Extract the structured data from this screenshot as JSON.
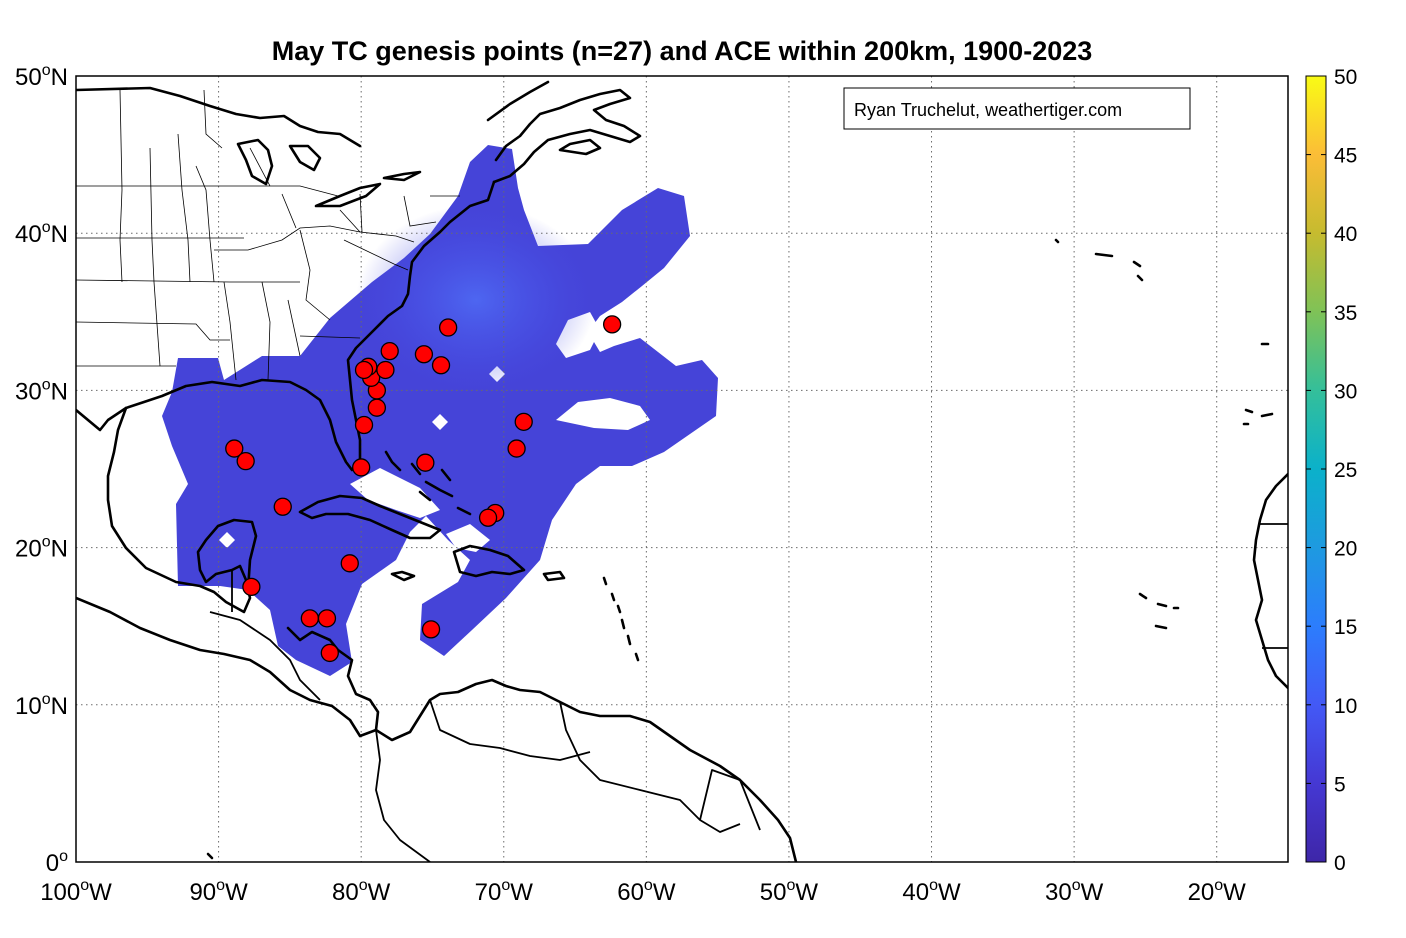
{
  "title": "May TC genesis points (n=27) and ACE within 200km, 1900-2023",
  "credit": "Ryan Truchelut, weathertiger.com",
  "map": {
    "lon_range": [
      -100,
      -15
    ],
    "lat_range": [
      0,
      50
    ],
    "x_ticks": [
      {
        "value": -100,
        "num": "100",
        "hem": "W"
      },
      {
        "value": -90,
        "num": "90",
        "hem": "W"
      },
      {
        "value": -80,
        "num": "80",
        "hem": "W"
      },
      {
        "value": -70,
        "num": "70",
        "hem": "W"
      },
      {
        "value": -60,
        "num": "60",
        "hem": "W"
      },
      {
        "value": -50,
        "num": "50",
        "hem": "W"
      },
      {
        "value": -40,
        "num": "40",
        "hem": "W"
      },
      {
        "value": -30,
        "num": "30",
        "hem": "W"
      },
      {
        "value": -20,
        "num": "20",
        "hem": "W"
      }
    ],
    "y_ticks": [
      {
        "value": 0,
        "num": "0",
        "hem": ""
      },
      {
        "value": 10,
        "num": "10",
        "hem": "N"
      },
      {
        "value": 20,
        "num": "20",
        "hem": "N"
      },
      {
        "value": 30,
        "num": "30",
        "hem": "N"
      },
      {
        "value": 40,
        "num": "40",
        "hem": "N"
      },
      {
        "value": 50,
        "num": "50",
        "hem": "N"
      }
    ],
    "degree_symbol": "o",
    "land_outline_color": "#000000",
    "grid": true
  },
  "colorbar": {
    "range": [
      0,
      50
    ],
    "ticks": [
      "0",
      "5",
      "10",
      "15",
      "20",
      "25",
      "30",
      "35",
      "40",
      "45",
      "50"
    ],
    "colormap": "parula",
    "colors": [
      "#3e26a8",
      "#4743e0",
      "#2f73fb",
      "#1e98e0",
      "#03b2c7",
      "#3bc08f",
      "#99c03a",
      "#dfb928",
      "#fdc831",
      "#f9fb15"
    ]
  },
  "chart_data": {
    "type": "scatter",
    "title": "May TC genesis points (n=27) and ACE within 200km, 1900-2023",
    "x_units": "longitude (degrees, negative = W)",
    "y_units": "latitude (degrees N)",
    "marker_color": "#ff0000",
    "points": [
      {
        "lon": -88.9,
        "lat": 26.3
      },
      {
        "lon": -88.1,
        "lat": 25.5
      },
      {
        "lon": -85.5,
        "lat": 22.6
      },
      {
        "lon": -87.7,
        "lat": 17.5
      },
      {
        "lon": -83.6,
        "lat": 15.5
      },
      {
        "lon": -82.4,
        "lat": 15.5
      },
      {
        "lon": -82.2,
        "lat": 13.3
      },
      {
        "lon": -80.8,
        "lat": 19.0
      },
      {
        "lon": -80.0,
        "lat": 25.1
      },
      {
        "lon": -79.8,
        "lat": 27.8
      },
      {
        "lon": -78.9,
        "lat": 28.9
      },
      {
        "lon": -78.9,
        "lat": 30.0
      },
      {
        "lon": -79.3,
        "lat": 30.8
      },
      {
        "lon": -79.5,
        "lat": 31.5
      },
      {
        "lon": -79.8,
        "lat": 31.3
      },
      {
        "lon": -78.3,
        "lat": 31.3
      },
      {
        "lon": -78.0,
        "lat": 32.5
      },
      {
        "lon": -75.6,
        "lat": 32.3
      },
      {
        "lon": -74.4,
        "lat": 31.6
      },
      {
        "lon": -73.9,
        "lat": 34.0
      },
      {
        "lon": -75.5,
        "lat": 25.4
      },
      {
        "lon": -70.6,
        "lat": 22.2
      },
      {
        "lon": -71.1,
        "lat": 21.9
      },
      {
        "lon": -69.1,
        "lat": 26.3
      },
      {
        "lon": -68.6,
        "lat": 28.0
      },
      {
        "lon": -75.1,
        "lat": 14.8
      },
      {
        "lon": -62.4,
        "lat": 34.2
      }
    ],
    "ace_field": {
      "description": "ACE within 200km shaded region",
      "peak_value_approx": 7,
      "peak_location": {
        "lon": -72.5,
        "lat": 36.0
      }
    }
  }
}
